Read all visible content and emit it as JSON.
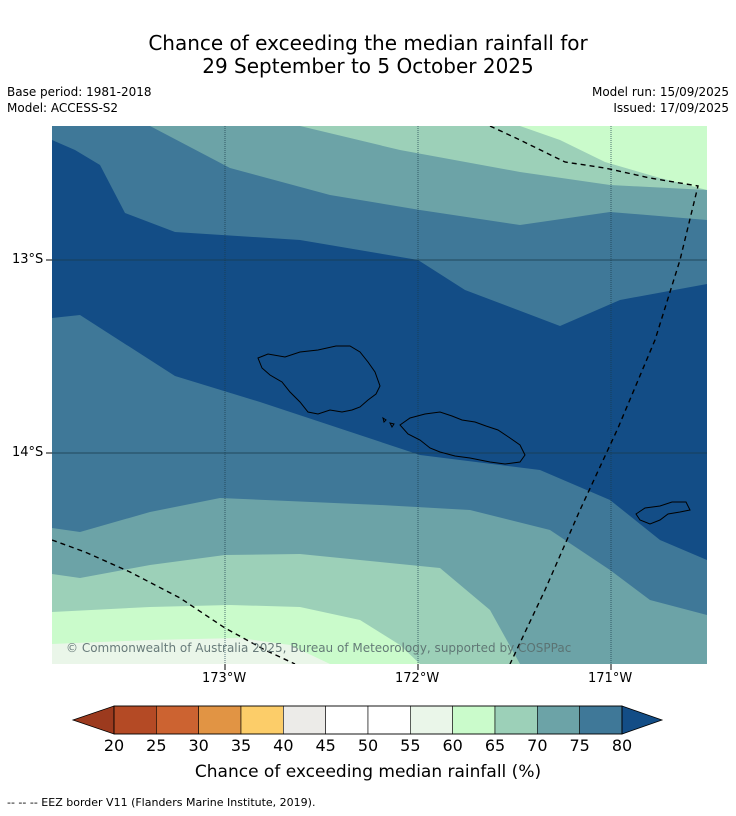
{
  "title": {
    "line1": "Chance of exceeding the median rainfall for",
    "line2": "29 September to 5 October 2025"
  },
  "meta": {
    "base_period": "Base period: 1981-2018",
    "model": "Model: ACCESS-S2",
    "model_run": "Model run: 15/09/2025",
    "issued": "Issued: 17/09/2025"
  },
  "axes": {
    "lat_ticks": [
      "13°S",
      "14°S"
    ],
    "lon_ticks": [
      "173°W",
      "172°W",
      "171°W"
    ]
  },
  "copyright": "© Commonwealth of Australia 2025, Bureau of Meteorology, supported by COSPPac",
  "colorbar": {
    "label": "Chance of exceeding median rainfall (%)",
    "ticks": [
      "20",
      "25",
      "30",
      "35",
      "40",
      "45",
      "50",
      "55",
      "60",
      "65",
      "70",
      "75",
      "80"
    ],
    "colors": [
      "#9c3a1e",
      "#b44a25",
      "#cc6331",
      "#e19444",
      "#fccd69",
      "#ecebe8",
      "#ffffff",
      "#ffffff",
      "#eaf6e9",
      "#cafbcb",
      "#9cd0b8",
      "#6ca3a7",
      "#3f7898",
      "#134d86"
    ]
  },
  "footnote": "--  --  -- EEZ border V11 (Flanders Marine Institute, 2019)."
}
